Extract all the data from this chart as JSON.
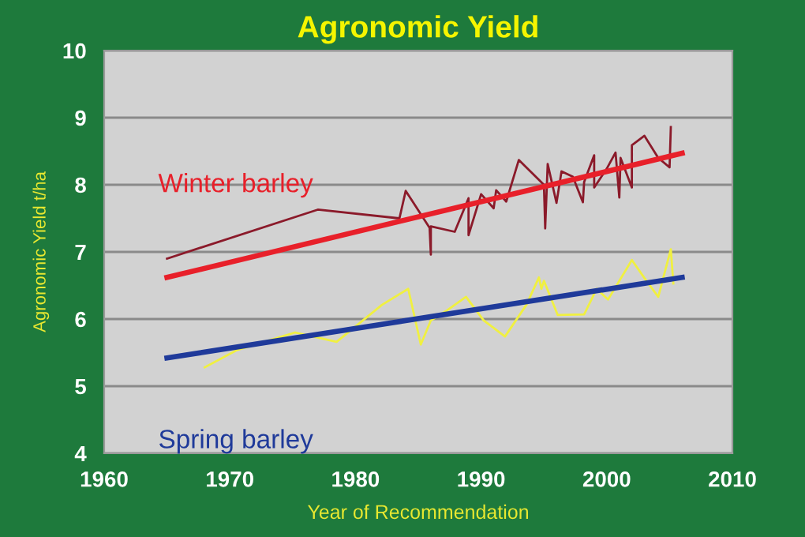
{
  "chart_data": {
    "type": "line",
    "title": "Agronomic Yield",
    "xlabel": "Year of Recommendation",
    "ylabel": "Agronomic Yield t/ha",
    "xlim": [
      1960,
      2010
    ],
    "xticks": [
      1960,
      1970,
      1980,
      1990,
      2000,
      2010
    ],
    "ylim": [
      4,
      10
    ],
    "yticks": [
      4,
      5,
      6,
      7,
      8,
      9,
      10
    ],
    "grid": "y",
    "marker": "none",
    "line_style": "solid",
    "series": [
      {
        "color": "#8b1a2a",
        "x": [
          1965.0,
          1977.0,
          1983.5,
          1984.0,
          1985.9,
          1986.0,
          1986.0,
          1987.9,
          1989.0,
          1989.0,
          1990.0,
          1991.0,
          1991.2,
          1992.0,
          1993.0,
          1995.0,
          1995.1,
          1995.3,
          1996.0,
          1996.4,
          1997.3,
          1998.1,
          1998.2,
          1999.0,
          1999.0,
          2000.0,
          2000.7,
          2001.0,
          2001.1,
          2002.0,
          2002.0,
          2003.0,
          2004.1,
          2005.0,
          2005.1
        ],
        "values": [
          6.9,
          7.63,
          7.5,
          7.91,
          7.36,
          6.96,
          7.38,
          7.3,
          7.8,
          7.25,
          7.86,
          7.65,
          7.92,
          7.75,
          8.37,
          8.0,
          7.35,
          8.31,
          7.73,
          8.2,
          8.12,
          7.74,
          8.04,
          8.44,
          7.96,
          8.24,
          8.48,
          7.81,
          8.4,
          7.96,
          8.59,
          8.73,
          8.4,
          8.26,
          8.86
        ]
      },
      {
        "name": "Winter barley",
        "color": "#e8202a",
        "x": [
          1965,
          2006
        ],
        "values": [
          6.62,
          8.47
        ]
      },
      {
        "color": "#f0f040",
        "x": [
          1968.0,
          1970.6,
          1975.2,
          1978.5,
          1980.6,
          1982.1,
          1984.2,
          1985.2,
          1986.0,
          1987.3,
          1988.8,
          1990.2,
          1991.9,
          1993.6,
          1994.6,
          1994.8,
          1995.0,
          1996.1,
          1998.2,
          1999.2,
          2000.1,
          2002.0,
          2003.0,
          2004.1,
          2005.1,
          2005.3
        ],
        "values": [
          5.28,
          5.54,
          5.8,
          5.66,
          5.98,
          6.21,
          6.45,
          5.62,
          5.98,
          6.13,
          6.33,
          5.98,
          5.74,
          6.21,
          6.62,
          6.45,
          6.57,
          6.06,
          6.07,
          6.45,
          6.29,
          6.88,
          6.61,
          6.33,
          7.04,
          6.53
        ]
      },
      {
        "name": "Spring barley",
        "color": "#1f3a9a",
        "x": [
          1965,
          2006
        ],
        "values": [
          5.42,
          6.62
        ]
      }
    ]
  }
}
